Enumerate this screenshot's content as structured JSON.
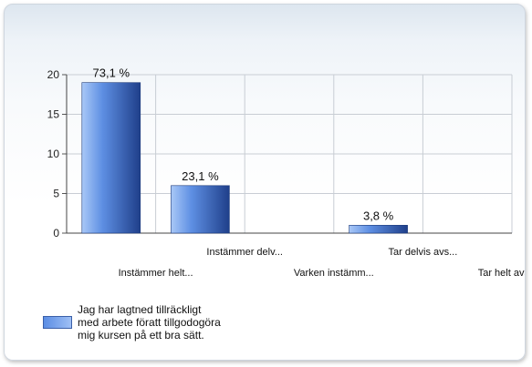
{
  "chart_data": {
    "type": "bar",
    "categories": [
      "Instämmer helt...",
      "Instämmer delv...",
      "Varken instämm...",
      "Tar delvis avs...",
      "Tar helt avstå..."
    ],
    "series": [
      {
        "name": "Jag har lagtned tillräckligt med arbete föratt tillgodogöra mig kursen på ett bra sätt.",
        "values": [
          19,
          6,
          0,
          1,
          0
        ],
        "labels": [
          "73,1 %",
          "23,1 %",
          "",
          "3,8 %",
          ""
        ]
      }
    ],
    "yticks": [
      "0",
      "5",
      "10",
      "15",
      "20"
    ],
    "ylim": [
      0,
      20
    ],
    "grid": true,
    "legend_position": "bottom-left",
    "colors": {
      "bar_light": "#a9c8f7",
      "bar_dark": "#1f3f8a"
    }
  },
  "legend": {
    "line1": "Jag har lagtned tillräckligt",
    "line2": "med arbete föratt tillgodogöra",
    "line3": "mig kursen på ett bra sätt."
  }
}
